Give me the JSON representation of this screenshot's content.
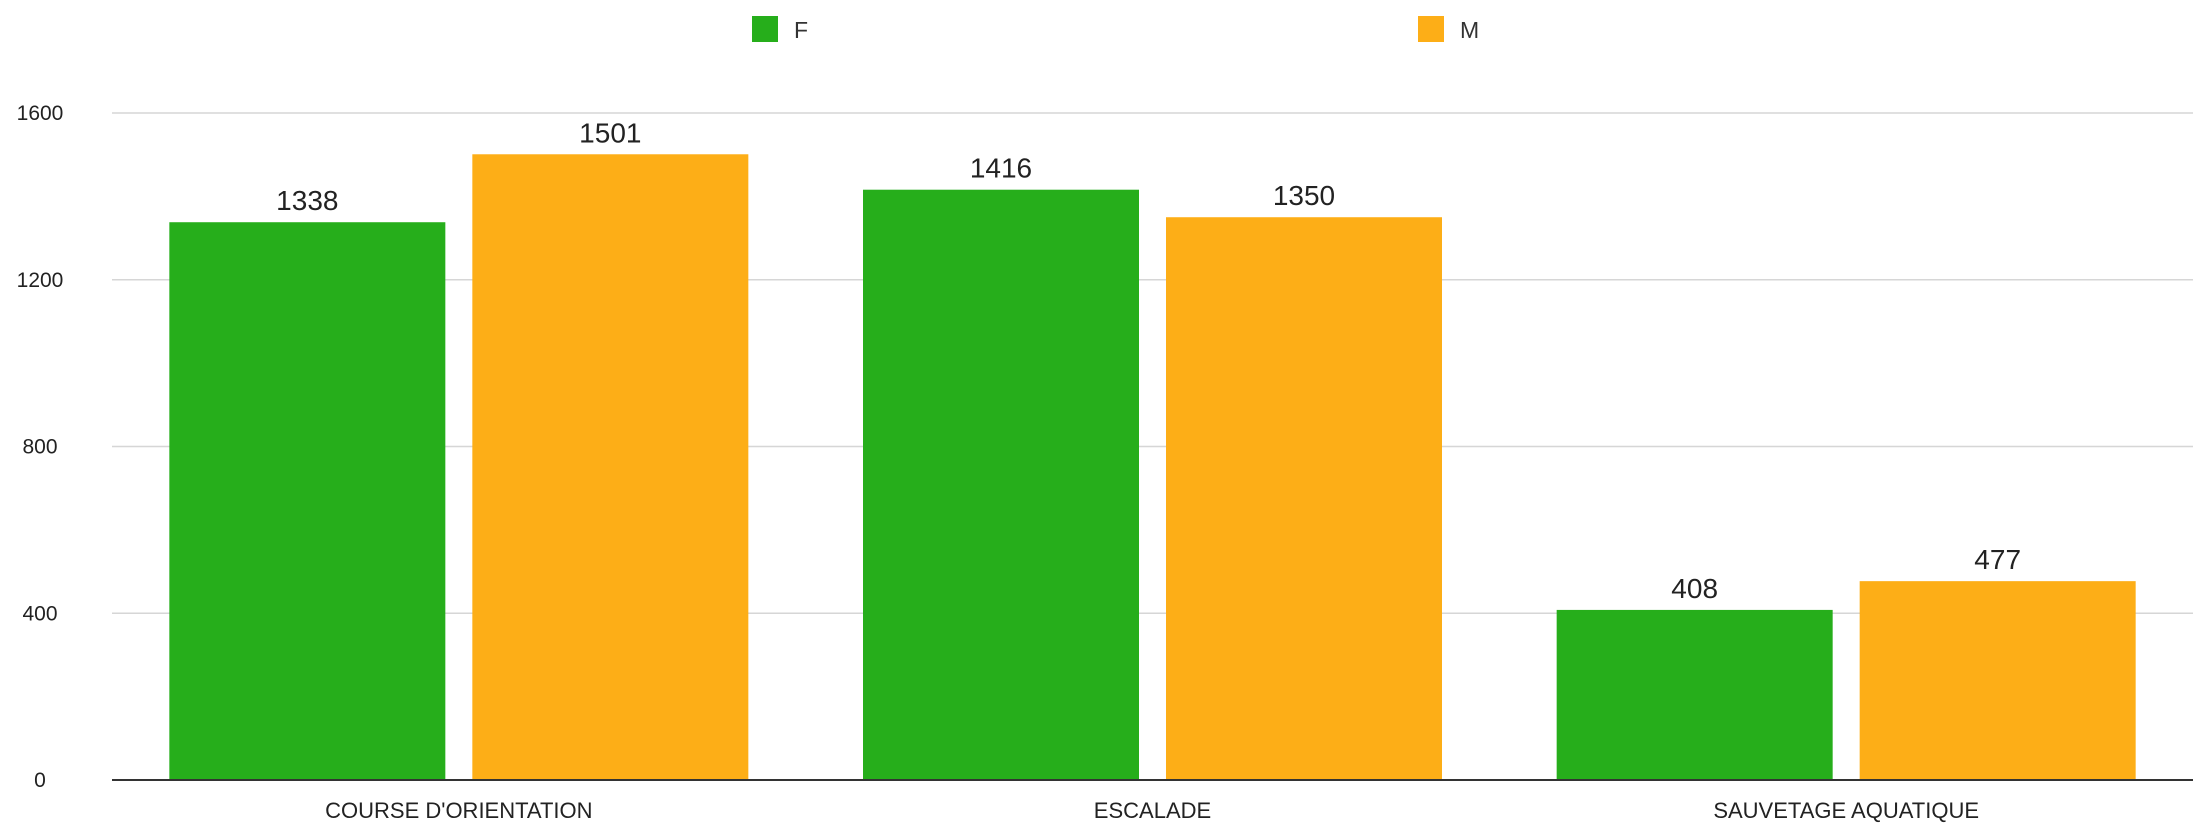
{
  "chart_data": {
    "type": "bar",
    "title": "",
    "xlabel": "",
    "ylabel": "",
    "categories": [
      "COURSE D'ORIENTATION",
      "ESCALADE",
      "SAUVETAGE AQUATIQUE"
    ],
    "series": [
      {
        "name": "F",
        "values": [
          1338,
          1416,
          408
        ],
        "color": "#26ae1b"
      },
      {
        "name": "M",
        "values": [
          1501,
          1350,
          477
        ],
        "color": "#fdae17"
      }
    ],
    "ylim": [
      0,
      1600
    ],
    "yticks": [
      0,
      400,
      800,
      1200,
      1600
    ],
    "grid": true,
    "legend": "top-center",
    "data_labels": true
  }
}
